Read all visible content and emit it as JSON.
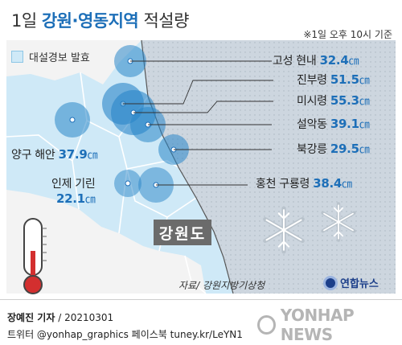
{
  "title": {
    "prefix": "1일 ",
    "highlight": "강원·영동지역",
    "suffix": " 적설량"
  },
  "datetime": "※1일 오후 10시 기준",
  "legend": {
    "label": "대설경보 발효",
    "color": "#cfe9f7"
  },
  "unit": "㎝",
  "stations": [
    {
      "name": "고성 현내",
      "value": "32.4"
    },
    {
      "name": "진부령",
      "value": "51.5"
    },
    {
      "name": "미시령",
      "value": "55.3"
    },
    {
      "name": "설악동",
      "value": "39.1"
    },
    {
      "name": "북강릉",
      "value": "29.5"
    },
    {
      "name": "홍천 구룡령",
      "value": "38.4"
    },
    {
      "name": "양구 해안",
      "value": "37.9"
    },
    {
      "name": "인제 기린",
      "value": "22.1"
    }
  ],
  "region_label": "강원도",
  "source": "자료/ 강원지방기상청",
  "brand": "연합뉴스",
  "reporter": {
    "name": "장예진 기자",
    "date": " / 20210301"
  },
  "social": "트위터 @yonhap_graphics  페이스북 tuney.kr/LeYN1",
  "watermark": "YONHAP NEWS",
  "colors": {
    "accent": "#1d6fb8",
    "warning_area": "#cfe9f7",
    "sea": "#cdd6df",
    "marker": "#2a86c8"
  },
  "icons": [
    "thermometer-icon",
    "snowflake-icon"
  ]
}
